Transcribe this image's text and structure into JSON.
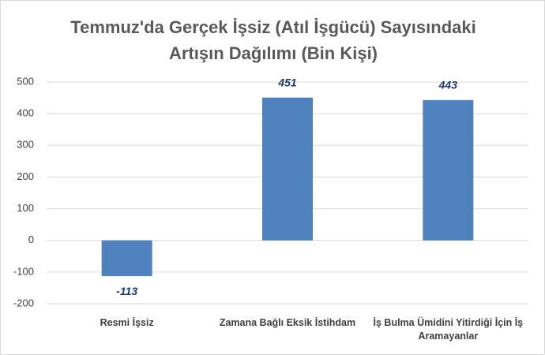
{
  "chart_data": {
    "type": "bar",
    "title": [
      "Temmuz'da Gerçek İşsiz (Atıl İşgücü) Sayısındaki",
      "Artışın Dağılımı (Bin Kişi)"
    ],
    "categories": [
      "Resmi İşsiz",
      "Zamana Bağlı Eksik İstihdam",
      "İş Bulma Ümidini Yitirdiği İçin İş Aramayanlar"
    ],
    "values": [
      -113,
      451,
      443
    ],
    "color": "#4f81bd",
    "ylim": [
      -200,
      500
    ],
    "yticks": [
      -200,
      -100,
      0,
      100,
      200,
      300,
      400,
      500
    ],
    "grid": true
  }
}
